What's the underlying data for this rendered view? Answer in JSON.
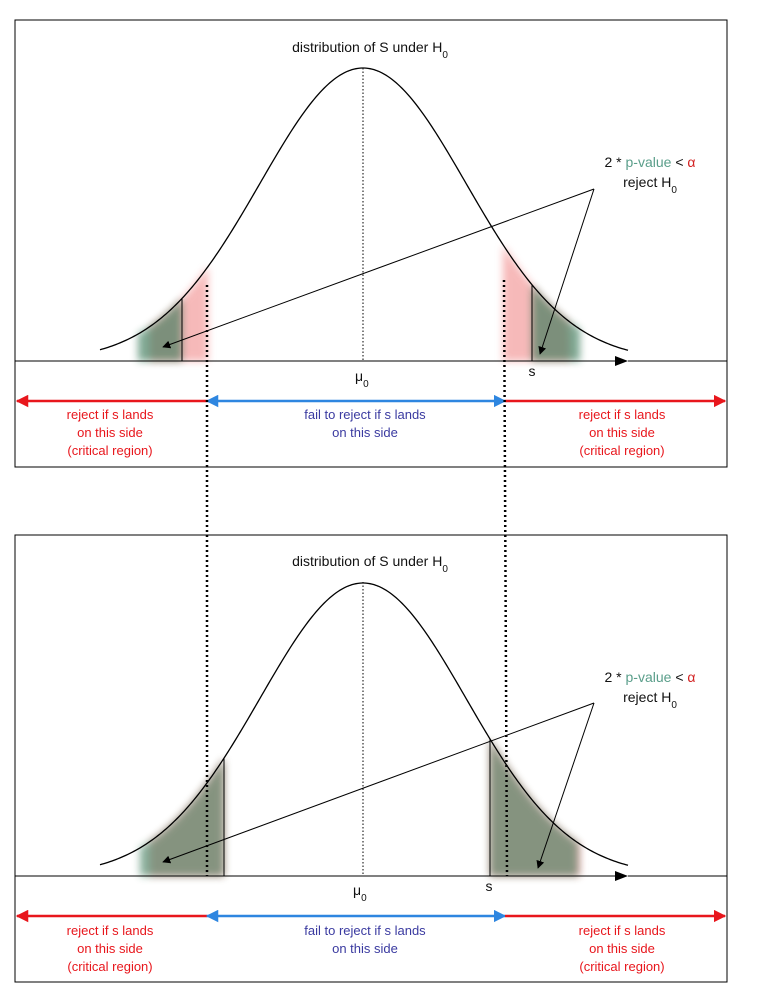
{
  "colors": {
    "reject": "#e8161c",
    "fail": "#2e86e0",
    "fail_text": "#3a3aa0",
    "pvalue": "#5a9e8a",
    "alpha": "#d22020",
    "curve": "#000000",
    "shade_red": "#f08080",
    "shade_green": "#3a7a5a"
  },
  "panels": [
    {
      "title_prefix": "distribution of S under H",
      "title_sub": "0",
      "mean_label": "μ",
      "mean_sub": "0",
      "stat_label": "s",
      "annotation": {
        "prefix": "2 * ",
        "pvalue": "p-value",
        "lt": " < ",
        "alpha": "α",
        "reject_prefix": "reject H",
        "reject_sub": "0"
      },
      "left_region": [
        "reject if s lands",
        "on this side",
        "(critical region)"
      ],
      "middle_region": [
        "fail to reject if s lands",
        "on this side"
      ],
      "right_region": [
        "reject if s lands",
        "on this side",
        "(critical region)"
      ]
    },
    {
      "title_prefix": "distribution of S under H",
      "title_sub": "0",
      "mean_label": "μ",
      "mean_sub": "0",
      "stat_label": "s",
      "annotation": {
        "prefix": "2 * ",
        "pvalue": "p-value",
        "lt": " < ",
        "alpha": "α",
        "reject_prefix": "reject H",
        "reject_sub": "0"
      },
      "left_region": [
        "reject if s lands",
        "on this side",
        "(critical region)"
      ],
      "middle_region": [
        "fail to reject if s lands",
        "on this side"
      ],
      "right_region": [
        "reject if s lands",
        "on this side",
        "(critical region)"
      ]
    }
  ]
}
